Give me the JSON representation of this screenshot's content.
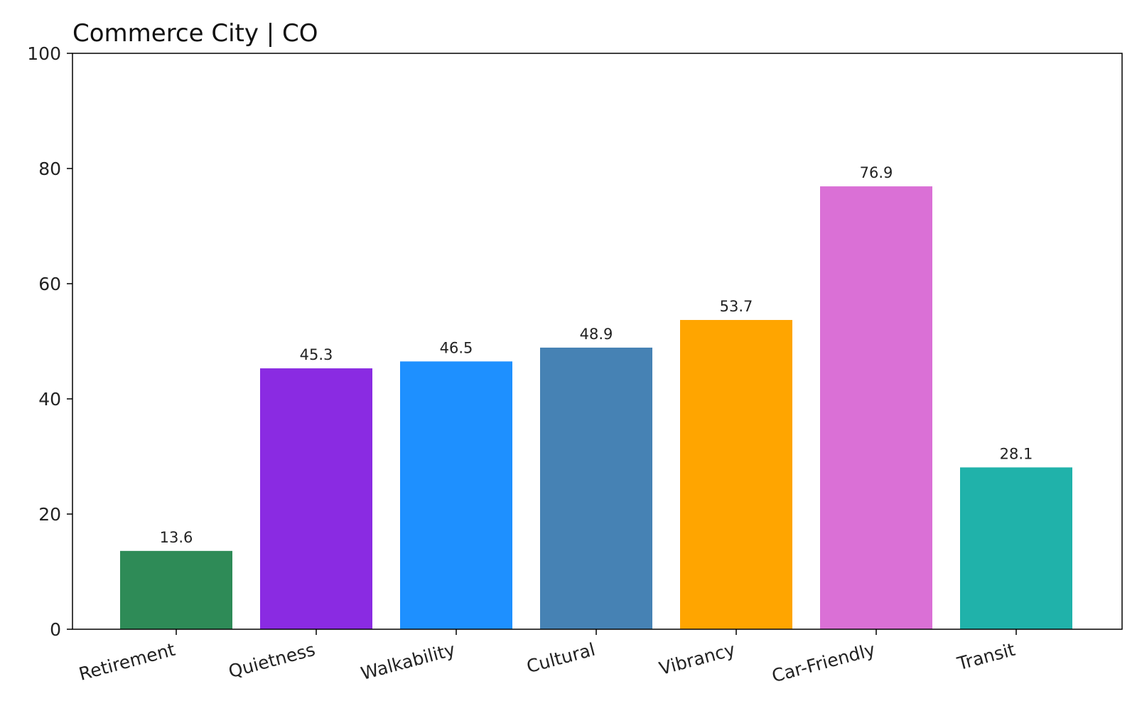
{
  "chart_data": {
    "type": "bar",
    "title": "Commerce City | CO",
    "xlabel": "",
    "ylabel": "",
    "categories": [
      "Retirement",
      "Quietness",
      "Walkability",
      "Cultural",
      "Vibrancy",
      "Car-Friendly",
      "Transit"
    ],
    "values": [
      13.6,
      45.3,
      46.5,
      48.9,
      53.7,
      76.9,
      28.1
    ],
    "value_labels": [
      "13.6",
      "45.3",
      "46.5",
      "48.9",
      "53.7",
      "76.9",
      "28.1"
    ],
    "colors": [
      "#2e8b57",
      "#8a2be2",
      "#1e90ff",
      "#4682b4",
      "#ffa500",
      "#da70d6",
      "#20b2aa"
    ],
    "ylim": [
      0,
      100
    ],
    "yticks": [
      0,
      20,
      40,
      60,
      80,
      100
    ],
    "ytick_labels": [
      "0",
      "20",
      "40",
      "60",
      "80",
      "100"
    ],
    "grid": false,
    "legend": "none"
  }
}
